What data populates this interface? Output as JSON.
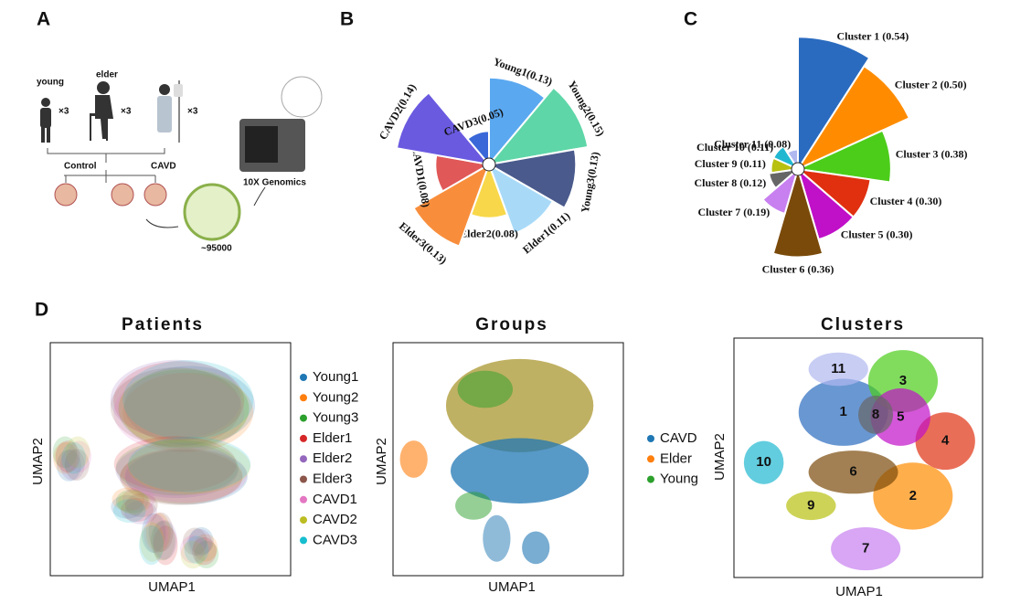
{
  "panel_labels": [
    "A",
    "B",
    "C",
    "D"
  ],
  "panel_a": {
    "young": "young",
    "elder": "elder",
    "multipliers": [
      "×3",
      "×3",
      "×3"
    ],
    "control": "Control",
    "cavd": "CAVD",
    "cells": "~95000",
    "platform": "10X Genomics"
  },
  "chart_data": [
    {
      "type": "rose",
      "categories": [
        "Young1",
        "Young2",
        "Young3",
        "Elder1",
        "Elder2",
        "Elder3",
        "CAVD1",
        "CAVD2",
        "CAVD3"
      ],
      "values": [
        0.13,
        0.15,
        0.13,
        0.11,
        0.08,
        0.13,
        0.08,
        0.14,
        0.05
      ],
      "value_labels": [
        "(0.13)",
        "(0.15)",
        "(0.13)",
        "(0.11)",
        "(0.08)",
        "(0.13)",
        "(0.08)",
        "(0.14)",
        "(0.05)"
      ],
      "colors": [
        "#5aa8f0",
        "#5ed6a8",
        "#4a5a8c",
        "#a8daf8",
        "#f8d84a",
        "#f88e3c",
        "#e05858",
        "#6a5ae0",
        "#3a68d8"
      ]
    },
    {
      "type": "rose",
      "categories": [
        "Cluster 1",
        "Cluster 2",
        "Cluster 3",
        "Cluster 4",
        "Cluster 5",
        "Cluster 6",
        "Cluster 7",
        "Cluster 8",
        "Cluster 9",
        "Cluster 10",
        "Cluster 11"
      ],
      "values": [
        0.54,
        0.5,
        0.38,
        0.3,
        0.3,
        0.36,
        0.19,
        0.12,
        0.11,
        0.11,
        0.08
      ],
      "value_labels": [
        "(0.54)",
        "(0.50)",
        "(0.38)",
        "(0.30)",
        "(0.30)",
        "(0.36)",
        "(0.19)",
        "(0.12)",
        "(0.11)",
        "(0.11)",
        "(0.08)"
      ],
      "colors": [
        "#2a6bbf",
        "#ff8c00",
        "#4ccd1a",
        "#e03010",
        "#c010c8",
        "#7a4a0a",
        "#c880f0",
        "#666666",
        "#b8c010",
        "#20b8d0",
        "#b0b8f0"
      ]
    }
  ],
  "umap_panels": [
    {
      "title": "Patients",
      "x_label": "UMAP1",
      "y_label": "UMAP2",
      "legend": [
        {
          "name": "Young1",
          "color": "#1f77b4"
        },
        {
          "name": "Young2",
          "color": "#ff7f0e"
        },
        {
          "name": "Young3",
          "color": "#2ca02c"
        },
        {
          "name": "Elder1",
          "color": "#d62728"
        },
        {
          "name": "Elder2",
          "color": "#9467bd"
        },
        {
          "name": "Elder3",
          "color": "#8c564b"
        },
        {
          "name": "CAVD1",
          "color": "#e377c2"
        },
        {
          "name": "CAVD2",
          "color": "#bcbd22"
        },
        {
          "name": "CAVD3",
          "color": "#17becf"
        }
      ]
    },
    {
      "title": "Groups",
      "x_label": "UMAP1",
      "y_label": "UMAP2",
      "legend": [
        {
          "name": "CAVD",
          "color": "#1f77b4"
        },
        {
          "name": "Elder",
          "color": "#ff7f0e"
        },
        {
          "name": "Young",
          "color": "#2ca02c"
        }
      ]
    },
    {
      "title": "Clusters",
      "x_label": "UMAP1",
      "y_label": "UMAP2",
      "cluster_labels": [
        "1",
        "2",
        "3",
        "4",
        "5",
        "6",
        "7",
        "8",
        "9",
        "10",
        "11"
      ]
    }
  ]
}
